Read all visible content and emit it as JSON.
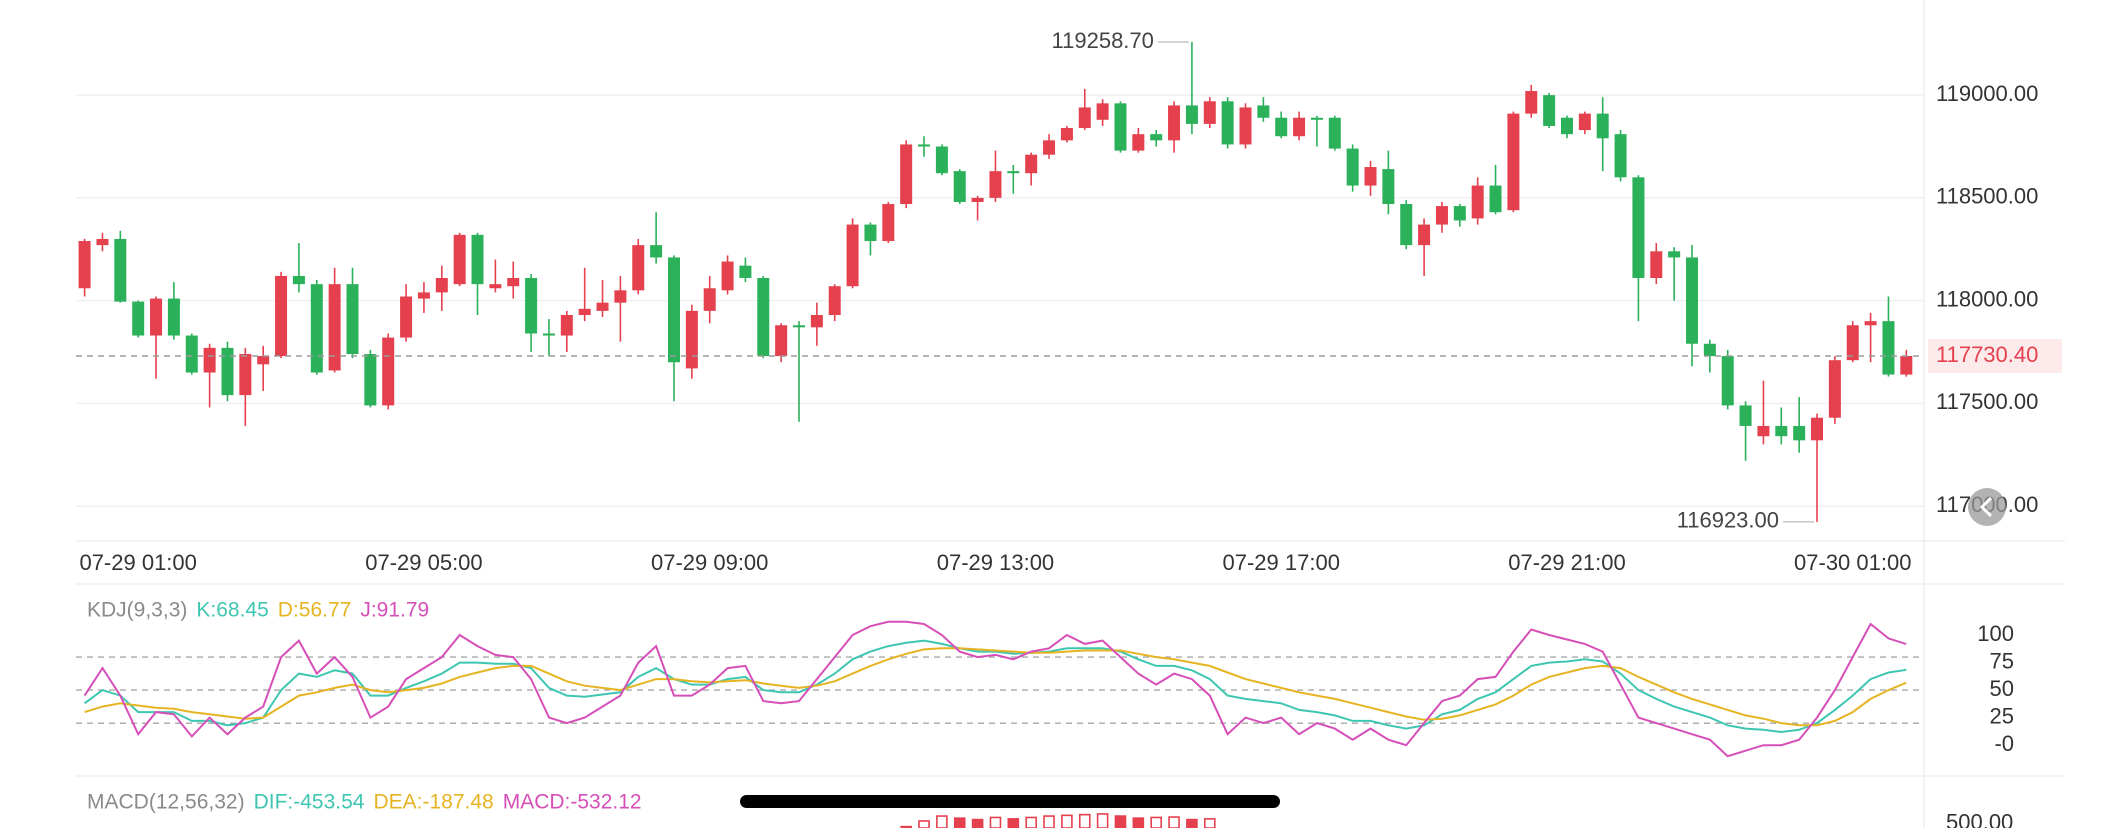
{
  "chart_data": [
    {
      "type": "candlestick",
      "categories": [
        null,
        null,
        null,
        "07-29 01:00",
        null,
        null,
        null,
        null,
        null,
        null,
        null,
        null,
        null,
        null,
        null,
        null,
        null,
        null,
        null,
        "07-29 05:00",
        null,
        null,
        null,
        null,
        null,
        null,
        null,
        null,
        null,
        null,
        null,
        null,
        null,
        null,
        null,
        "07-29 09:00",
        null,
        null,
        null,
        null,
        null,
        null,
        null,
        null,
        null,
        null,
        null,
        null,
        null,
        null,
        null,
        "07-29 13:00",
        null,
        null,
        null,
        null,
        null,
        null,
        null,
        null,
        null,
        null,
        null,
        null,
        null,
        null,
        null,
        "07-29 17:00",
        null,
        null,
        null,
        null,
        null,
        null,
        null,
        null,
        null,
        null,
        null,
        null,
        null,
        null,
        null,
        "07-29 21:00",
        null,
        null,
        null,
        null,
        null,
        null,
        null,
        null,
        null,
        null,
        null,
        null,
        null,
        null,
        null,
        "07-30 01:00",
        null,
        null,
        null
      ],
      "open": [
        118060,
        118270,
        118300,
        117995,
        117830,
        118010,
        117830,
        117650,
        117770,
        117540,
        117690,
        117730,
        118120,
        118080,
        117660,
        118080,
        117740,
        117490,
        117820,
        118010,
        118040,
        118080,
        118320,
        118060,
        118070,
        118110,
        117840,
        117830,
        117930,
        117950,
        117990,
        118050,
        118270,
        118210,
        117670,
        117950,
        118050,
        118170,
        118110,
        117730,
        117880,
        117870,
        117930,
        118070,
        118370,
        118290,
        118470,
        118760,
        118750,
        118630,
        118480,
        118500,
        118630,
        118620,
        118710,
        118780,
        118840,
        118880,
        118960,
        118730,
        118810,
        118780,
        118950,
        118860,
        118970,
        118760,
        118950,
        118890,
        118800,
        118890,
        118890,
        118740,
        118560,
        118640,
        118470,
        118270,
        118370,
        118460,
        118400,
        118560,
        118440,
        118910,
        119000,
        118890,
        118830,
        118910,
        118810,
        118600,
        118110,
        118240,
        118210,
        117790,
        117730,
        117490,
        117340,
        117390,
        117390,
        117320,
        117430,
        117710,
        117880,
        117900,
        117640
      ],
      "high": [
        118300,
        118330,
        118340,
        118000,
        118020,
        118090,
        117840,
        117790,
        117800,
        117770,
        117780,
        118140,
        118280,
        118100,
        118160,
        118160,
        117760,
        117840,
        118080,
        118090,
        118170,
        118330,
        118330,
        118200,
        118190,
        118130,
        117910,
        117950,
        118160,
        118100,
        118120,
        118300,
        118430,
        118220,
        117980,
        118120,
        118220,
        118210,
        118120,
        117890,
        117900,
        117990,
        118080,
        118400,
        118380,
        118480,
        118780,
        118800,
        118760,
        118640,
        118510,
        118730,
        118660,
        118720,
        118810,
        118850,
        119030,
        118980,
        118970,
        118840,
        118830,
        118970,
        119258.7,
        118990,
        118990,
        118960,
        118990,
        118920,
        118920,
        118900,
        118900,
        118760,
        118680,
        118730,
        118490,
        118400,
        118480,
        118470,
        118600,
        118660,
        118920,
        119050,
        119010,
        118900,
        118920,
        118990,
        118830,
        118610,
        118280,
        118260,
        118270,
        117810,
        117760,
        117510,
        117610,
        117480,
        117530,
        117450,
        117730,
        117900,
        117940,
        118020,
        117760
      ],
      "low": [
        118020,
        118240,
        117990,
        117820,
        117620,
        117810,
        117640,
        117480,
        117510,
        117390,
        117560,
        117720,
        118040,
        117640,
        117650,
        117720,
        117480,
        117470,
        117800,
        117940,
        117950,
        118070,
        117930,
        118040,
        118010,
        117750,
        117730,
        117750,
        117900,
        117920,
        117800,
        118030,
        118180,
        117510,
        117620,
        117890,
        118030,
        118090,
        117720,
        117700,
        117410,
        117780,
        117900,
        118060,
        118220,
        118280,
        118450,
        118700,
        118610,
        118470,
        118390,
        118480,
        118520,
        118560,
        118690,
        118770,
        118830,
        118850,
        118720,
        118720,
        118750,
        118720,
        118810,
        118840,
        118740,
        118740,
        118870,
        118790,
        118780,
        118750,
        118730,
        118530,
        118510,
        118420,
        118250,
        118120,
        118330,
        118360,
        118370,
        118420,
        118430,
        118890,
        118840,
        118790,
        118810,
        118630,
        118580,
        117900,
        118080,
        118000,
        117680,
        117650,
        117470,
        117220,
        117300,
        117300,
        117260,
        116923,
        117400,
        117700,
        117700,
        117630,
        117630
      ],
      "close": [
        118290,
        118300,
        117995,
        117830,
        118010,
        117830,
        117650,
        117770,
        117540,
        117740,
        117730,
        118120,
        118080,
        117650,
        118080,
        117740,
        117490,
        117820,
        118020,
        118040,
        118110,
        118320,
        118080,
        118080,
        118110,
        117840,
        117830,
        117930,
        117960,
        117990,
        118050,
        118270,
        118210,
        117700,
        117950,
        118060,
        118190,
        118110,
        117730,
        117880,
        117870,
        117930,
        118070,
        118370,
        118290,
        118470,
        118760,
        118750,
        118620,
        118480,
        118500,
        118630,
        118620,
        118710,
        118780,
        118840,
        118940,
        118960,
        118730,
        118810,
        118780,
        118950,
        118860,
        118970,
        118760,
        118940,
        118890,
        118800,
        118890,
        118880,
        118740,
        118560,
        118650,
        118470,
        118270,
        118370,
        118460,
        118390,
        118560,
        118430,
        118910,
        119020,
        118850,
        118810,
        118910,
        118790,
        118600,
        118110,
        118240,
        118210,
        117790,
        117730,
        117490,
        117390,
        117390,
        117340,
        117320,
        117430,
        117710,
        117880,
        117900,
        117640,
        117730.4
      ],
      "up_color": "#e5404e",
      "down_color": "#2ab15a",
      "ylim": [
        116830,
        119463
      ],
      "yticks": [
        {
          "value": 117000,
          "label": "117000.00"
        },
        {
          "value": 117500,
          "label": "117500.00"
        },
        {
          "value": 118000,
          "label": "118000.00"
        },
        {
          "value": 118500,
          "label": "118500.00"
        },
        {
          "value": 119000,
          "label": "119000.00"
        }
      ],
      "grid": true,
      "last_price": {
        "value": 117730.4,
        "label": "117730.40"
      },
      "annotations": [
        {
          "value": 119258.7,
          "label": "119258.70"
        },
        {
          "value": 116923,
          "label": "116923.00"
        }
      ]
    },
    {
      "type": "line",
      "title": "KDJ(9,3,3)",
      "series": [
        {
          "name": "K:68.45",
          "color": "#3ec6b0",
          "values": [
            38,
            50,
            45,
            30,
            30,
            30,
            22,
            22,
            18,
            20,
            25,
            50,
            65,
            62,
            68,
            65,
            45,
            45,
            52,
            58,
            65,
            75,
            75,
            74,
            74,
            70,
            52,
            45,
            44,
            46,
            48,
            62,
            70,
            60,
            55,
            55,
            60,
            62,
            50,
            48,
            48,
            55,
            65,
            78,
            85,
            90,
            93,
            95,
            92,
            88,
            85,
            85,
            83,
            84,
            85,
            88,
            88,
            88,
            85,
            78,
            72,
            72,
            68,
            60,
            45,
            42,
            40,
            38,
            32,
            30,
            27,
            22,
            22,
            18,
            15,
            18,
            28,
            32,
            42,
            48,
            60,
            72,
            75,
            76,
            78,
            76,
            65,
            50,
            42,
            35,
            30,
            25,
            18,
            15,
            14,
            12,
            14,
            20,
            32,
            45,
            60,
            66,
            68.45
          ]
        },
        {
          "name": "D:56.77",
          "color": "#e6b422",
          "values": [
            30,
            35,
            38,
            36,
            34,
            33,
            30,
            28,
            26,
            24,
            25,
            35,
            45,
            48,
            52,
            55,
            50,
            48,
            50,
            52,
            56,
            62,
            66,
            70,
            72,
            72,
            65,
            58,
            54,
            52,
            50,
            55,
            60,
            60,
            58,
            57,
            58,
            59,
            56,
            54,
            52,
            54,
            58,
            65,
            72,
            78,
            83,
            87,
            88,
            88,
            87,
            86,
            85,
            84,
            84,
            85,
            86,
            86,
            86,
            83,
            80,
            78,
            75,
            72,
            66,
            60,
            56,
            52,
            48,
            45,
            42,
            38,
            34,
            30,
            26,
            23,
            24,
            27,
            32,
            37,
            45,
            55,
            62,
            66,
            70,
            72,
            70,
            62,
            55,
            48,
            42,
            37,
            32,
            27,
            24,
            20,
            18,
            18,
            22,
            30,
            42,
            50,
            56.77
          ]
        },
        {
          "name": "J:91.79",
          "color": "#d64fb8",
          "values": [
            45,
            70,
            45,
            10,
            30,
            28,
            8,
            25,
            10,
            25,
            35,
            80,
            95,
            65,
            80,
            62,
            25,
            35,
            60,
            70,
            80,
            100,
            90,
            82,
            80,
            60,
            25,
            20,
            25,
            35,
            45,
            75,
            90,
            45,
            45,
            55,
            70,
            72,
            40,
            38,
            40,
            60,
            80,
            100,
            108,
            112,
            112,
            110,
            100,
            85,
            80,
            82,
            78,
            85,
            88,
            100,
            92,
            95,
            80,
            65,
            55,
            65,
            60,
            45,
            10,
            25,
            20,
            25,
            10,
            20,
            15,
            5,
            15,
            5,
            0,
            20,
            40,
            45,
            60,
            62,
            85,
            105,
            100,
            96,
            92,
            85,
            55,
            25,
            20,
            15,
            10,
            5,
            -10,
            -5,
            0,
            0,
            5,
            25,
            50,
            80,
            110,
            97,
            91.79
          ]
        }
      ],
      "ylim": [
        -28,
        140
      ],
      "yticks": [
        100,
        75,
        50,
        25,
        {
          "value": 0,
          "label": "-0"
        }
      ],
      "reference_lines": [
        80,
        50,
        20
      ]
    },
    {
      "type": "bar",
      "title": "MACD(12,56,32)",
      "legend": [
        {
          "label": "DIF:-453.54",
          "color": "#3ec6b0"
        },
        {
          "label": "DEA:-187.48",
          "color": "#e6b422"
        },
        {
          "label": "MACD:-532.12",
          "color": "#d64fb8"
        }
      ],
      "values": [
        null,
        null,
        null,
        null,
        null,
        null,
        null,
        null,
        null,
        null,
        null,
        null,
        null,
        null,
        null,
        null,
        null,
        null,
        null,
        null,
        null,
        null,
        null,
        null,
        null,
        null,
        null,
        null,
        null,
        null,
        null,
        null,
        null,
        null,
        null,
        null,
        null,
        null,
        null,
        null,
        null,
        null,
        null,
        null,
        null,
        null,
        480,
        520,
        555,
        540,
        530,
        545,
        535,
        545,
        555,
        560,
        565,
        570,
        555,
        540,
        545,
        548,
        530,
        535,
        null,
        null,
        null,
        null,
        null,
        null,
        null,
        null,
        null,
        null,
        null,
        null,
        null,
        null,
        null,
        null,
        null,
        null,
        null,
        null,
        null,
        null,
        null,
        null,
        null,
        null,
        null,
        null,
        null,
        null,
        null,
        null,
        null,
        null,
        null
      ],
      "color": "#e5404e",
      "ylim": [
        470,
        840
      ],
      "yticks": [
        {
          "value": 500,
          "label": "500.00"
        }
      ]
    }
  ]
}
